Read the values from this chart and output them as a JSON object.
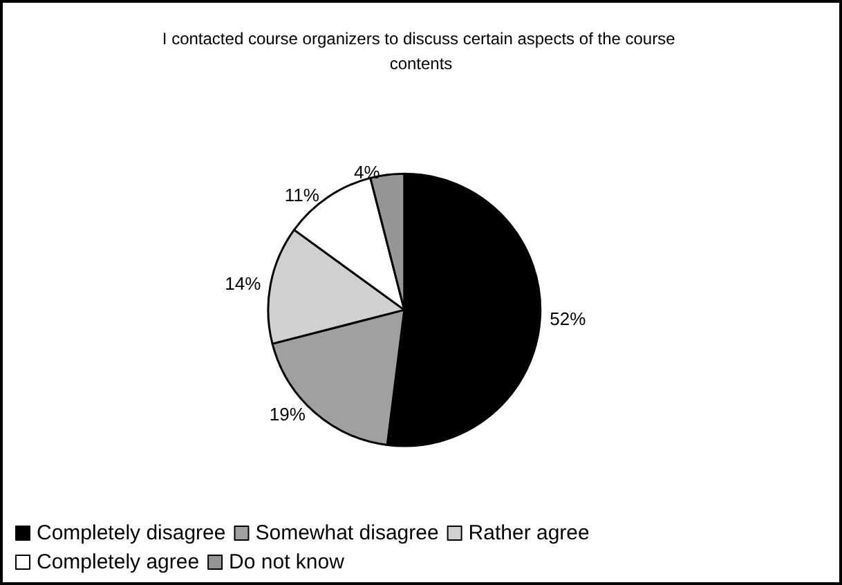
{
  "chart_data": {
    "type": "pie",
    "title": "I contacted course organizers to discuss certain aspects of the course contents",
    "categories": [
      "Completely disagree",
      "Somewhat disagree",
      "Rather agree",
      "Completely agree",
      "Do not know"
    ],
    "values": [
      52,
      19,
      14,
      11,
      4
    ],
    "colors": [
      "#000000",
      "#a0a0a0",
      "#d0d0d0",
      "#ffffff",
      "#969696"
    ],
    "value_labels": [
      "52%",
      "19%",
      "14%",
      "11%",
      "4%"
    ],
    "legend": "bottom"
  }
}
